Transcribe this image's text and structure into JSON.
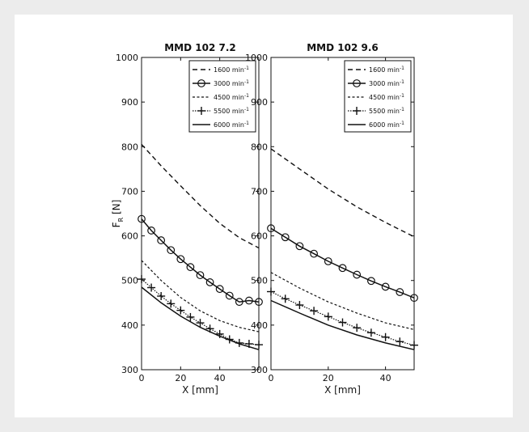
{
  "chart_data": [
    {
      "type": "line",
      "title": "MMD 102 7.2",
      "xlabel": "X [mm]",
      "ylabel": "F",
      "ylabel_sub": "R",
      "ylabel_unit": "[N]",
      "xlim": [
        0,
        60
      ],
      "ylim": [
        300,
        1000
      ],
      "xticks": [
        0,
        20,
        40
      ],
      "yticks": [
        300,
        400,
        500,
        600,
        700,
        800,
        900,
        1000
      ],
      "legend_position": "top-right",
      "series": [
        {
          "name": "1600 min",
          "style": "dash",
          "marker": "none",
          "points": [
            [
              0,
              805
            ],
            [
              10,
              757
            ],
            [
              20,
              712
            ],
            [
              30,
              668
            ],
            [
              40,
              628
            ],
            [
              50,
              596
            ],
            [
              60,
              573
            ]
          ]
        },
        {
          "name": "3000 min",
          "style": "solid",
          "marker": "circle",
          "points": [
            [
              0,
              638
            ],
            [
              5,
              612
            ],
            [
              10,
              590
            ],
            [
              15,
              568
            ],
            [
              20,
              548
            ],
            [
              25,
              530
            ],
            [
              30,
              512
            ],
            [
              35,
              496
            ],
            [
              40,
              481
            ],
            [
              45,
              466
            ],
            [
              50,
              452
            ],
            [
              55,
              455
            ],
            [
              60,
              452
            ]
          ]
        },
        {
          "name": "4500 min",
          "style": "shortdash",
          "marker": "none",
          "points": [
            [
              0,
              545
            ],
            [
              10,
              500
            ],
            [
              20,
              462
            ],
            [
              30,
              432
            ],
            [
              40,
              410
            ],
            [
              50,
              395
            ],
            [
              60,
              385
            ]
          ]
        },
        {
          "name": "5500 min",
          "style": "dot",
          "marker": "plus",
          "points": [
            [
              0,
              503
            ],
            [
              5,
              484
            ],
            [
              10,
              465
            ],
            [
              15,
              448
            ],
            [
              20,
              433
            ],
            [
              25,
              418
            ],
            [
              30,
              405
            ],
            [
              35,
              392
            ],
            [
              40,
              380
            ],
            [
              45,
              368
            ],
            [
              50,
              360
            ],
            [
              55,
              358
            ],
            [
              60,
              356
            ]
          ]
        },
        {
          "name": "6000 min",
          "style": "solid",
          "marker": "none",
          "points": [
            [
              0,
              485
            ],
            [
              10,
              450
            ],
            [
              20,
              420
            ],
            [
              30,
              395
            ],
            [
              40,
              375
            ],
            [
              50,
              358
            ],
            [
              60,
              345
            ]
          ]
        }
      ]
    },
    {
      "type": "line",
      "title": "MMD 102 9.6",
      "xlabel": "X [mm]",
      "xlim": [
        0,
        50
      ],
      "ylim": [
        300,
        1000
      ],
      "xticks": [
        0,
        20,
        40
      ],
      "yticks": [
        300,
        400,
        500,
        600,
        700,
        800,
        900,
        1000
      ],
      "legend_position": "top-right",
      "series": [
        {
          "name": "1600 min",
          "style": "dash",
          "marker": "none",
          "points": [
            [
              0,
              795
            ],
            [
              10,
              750
            ],
            [
              20,
              705
            ],
            [
              30,
              665
            ],
            [
              40,
              630
            ],
            [
              50,
              598
            ]
          ]
        },
        {
          "name": "3000 min",
          "style": "solid",
          "marker": "circle",
          "points": [
            [
              0,
              617
            ],
            [
              5,
              597
            ],
            [
              10,
              577
            ],
            [
              15,
              560
            ],
            [
              20,
              543
            ],
            [
              25,
              528
            ],
            [
              30,
              513
            ],
            [
              35,
              499
            ],
            [
              40,
              486
            ],
            [
              45,
              474
            ],
            [
              50,
              461
            ]
          ]
        },
        {
          "name": "4500 min",
          "style": "shortdash",
          "marker": "none",
          "points": [
            [
              0,
              518
            ],
            [
              10,
              483
            ],
            [
              20,
              452
            ],
            [
              30,
              427
            ],
            [
              40,
              405
            ],
            [
              50,
              390
            ]
          ]
        },
        {
          "name": "5500 min",
          "style": "dot",
          "marker": "plus",
          "points": [
            [
              0,
              475
            ],
            [
              5,
              459
            ],
            [
              10,
              445
            ],
            [
              15,
              432
            ],
            [
              20,
              419
            ],
            [
              25,
              406
            ],
            [
              30,
              394
            ],
            [
              35,
              383
            ],
            [
              40,
              373
            ],
            [
              45,
              363
            ],
            [
              50,
              355
            ]
          ]
        },
        {
          "name": "6000 min",
          "style": "solid",
          "marker": "none",
          "points": [
            [
              0,
              455
            ],
            [
              10,
              427
            ],
            [
              20,
              400
            ],
            [
              30,
              378
            ],
            [
              40,
              360
            ],
            [
              50,
              345
            ]
          ]
        }
      ]
    }
  ],
  "legend_unit_superscript": "-1"
}
